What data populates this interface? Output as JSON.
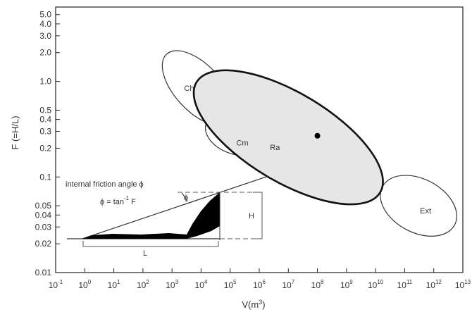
{
  "chart_data": {
    "type": "scatter",
    "xlabel": "V(m3)",
    "ylabel": "F (=H/L)",
    "x_scale": "log",
    "y_scale": "log",
    "xlim": [
      0.1,
      10000000000000
    ],
    "ylim": [
      0.01,
      6
    ],
    "x_ticks": [
      {
        "value": 0.1,
        "base": "10",
        "exp": "-1"
      },
      {
        "value": 1,
        "base": "10",
        "exp": "0"
      },
      {
        "value": 10,
        "base": "10",
        "exp": "1"
      },
      {
        "value": 100,
        "base": "10",
        "exp": "2"
      },
      {
        "value": 1000,
        "base": "10",
        "exp": "3"
      },
      {
        "value": 10000,
        "base": "10",
        "exp": "4"
      },
      {
        "value": 100000,
        "base": "10",
        "exp": "5"
      },
      {
        "value": 1000000,
        "base": "10",
        "exp": "6"
      },
      {
        "value": 10000000,
        "base": "10",
        "exp": "7"
      },
      {
        "value": 100000000,
        "base": "10",
        "exp": "8"
      },
      {
        "value": 1000000000,
        "base": "10",
        "exp": "9"
      },
      {
        "value": 10000000000,
        "base": "10",
        "exp": "10"
      },
      {
        "value": 100000000000,
        "base": "10",
        "exp": "11"
      },
      {
        "value": 1000000000000,
        "base": "10",
        "exp": "12"
      },
      {
        "value": 10000000000000,
        "base": "10",
        "exp": "13"
      }
    ],
    "y_ticks": [
      {
        "value": 5.0,
        "label": "5.0"
      },
      {
        "value": 4.0,
        "label": "4.0"
      },
      {
        "value": 3.0,
        "label": "3.0"
      },
      {
        "value": 2.0,
        "label": "2.0"
      },
      {
        "value": 1.0,
        "label": "1.0"
      },
      {
        "value": 0.5,
        "label": "0.5"
      },
      {
        "value": 0.4,
        "label": "0.4"
      },
      {
        "value": 0.3,
        "label": "0.3"
      },
      {
        "value": 0.2,
        "label": "0.2"
      },
      {
        "value": 0.1,
        "label": "0.1"
      },
      {
        "value": 0.05,
        "label": "0.05"
      },
      {
        "value": 0.04,
        "label": "0.04"
      },
      {
        "value": 0.03,
        "label": "0.03"
      },
      {
        "value": 0.02,
        "label": "0.02"
      },
      {
        "value": 0.01,
        "label": "0.01"
      }
    ],
    "regions": [
      {
        "label": "Ch",
        "center": [
          8000,
          0.85
        ],
        "fill": "#ffffff",
        "stroke": "#333333",
        "emphasis": false
      },
      {
        "label": "Cm",
        "center": [
          150000,
          0.28
        ],
        "fill": "#ffffff",
        "stroke": "#333333",
        "emphasis": false
      },
      {
        "label": "Ext",
        "center": [
          300000000000,
          0.05
        ],
        "fill": "#ffffff",
        "stroke": "#333333",
        "emphasis": false
      },
      {
        "label": "Ra",
        "center": [
          10000000,
          0.26
        ],
        "fill": "#e6e6e6",
        "stroke": "#111111",
        "emphasis": true
      }
    ],
    "points": [
      {
        "x": 100000000,
        "y": 0.27
      }
    ],
    "inset": {
      "title": "internal friction angle ϕ",
      "formula": "ϕ = tan",
      "formula_exp": "-1",
      "formula_tail": " F",
      "angle_label": "ϕ",
      "height_label": "H",
      "length_label": "L"
    },
    "grid": false,
    "legend": "none"
  }
}
